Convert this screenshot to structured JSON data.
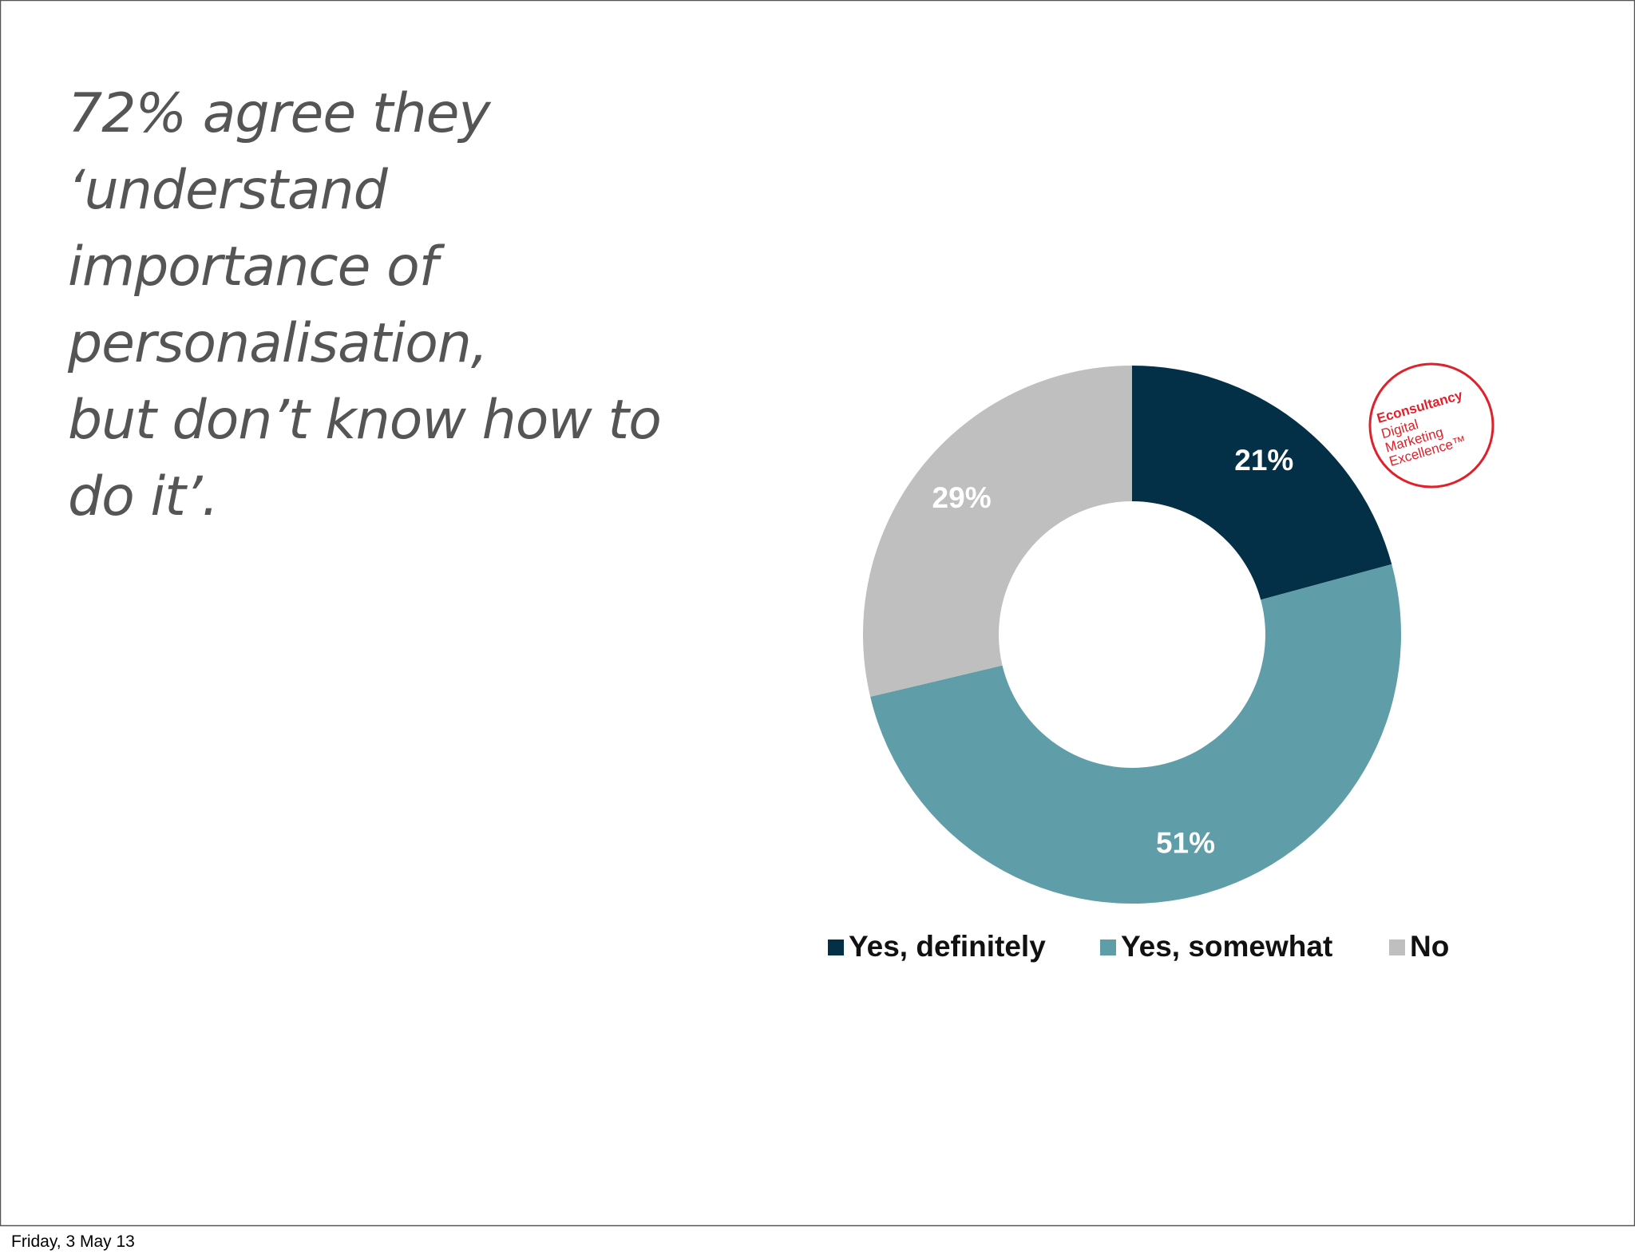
{
  "chart_data": {
    "type": "donut",
    "title_lines": [
      "72% agree they",
      "‘understand",
      "importance of",
      "personalisation,",
      "but don’t know how to",
      "do it’."
    ],
    "categories": [
      "Yes, definitely",
      "Yes, somewhat",
      "No"
    ],
    "values": [
      21,
      51,
      29
    ],
    "value_labels": [
      "21%",
      "51%",
      "29%"
    ],
    "colors": [
      "#033047",
      "#5f9ea8",
      "#bfbfbf"
    ],
    "legend": "bottom"
  },
  "logo": {
    "lines": [
      "Econsultancy",
      "Digital",
      "Marketing",
      "Excellence™"
    ]
  },
  "footer": "Friday, 3 May 13"
}
